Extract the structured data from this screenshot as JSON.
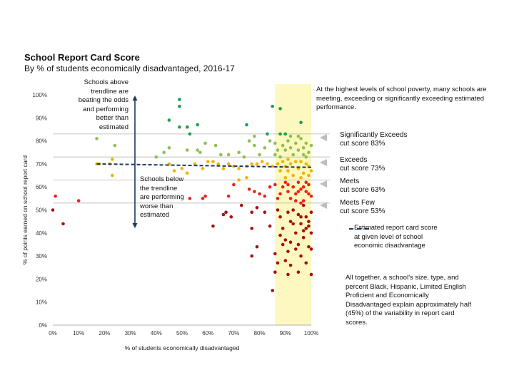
{
  "title": "School Report Card Score",
  "subtitle": "By % of students economically disadvantaged, 2016-17",
  "colors": {
    "significantly_exceeds": "#1f9e4a",
    "exceeds": "#8cc152",
    "meets": "#f0b400",
    "meets_few": "#e8231a",
    "below": "#a81010",
    "highlight": "#fcf8bf",
    "trendline": "#1a3a5c",
    "arrow": "#1a3a5c",
    "cutline": "#b5b5b5"
  },
  "annotations": {
    "above": "Schools above trendline are beating the odds and performing better than estimated",
    "below": "Schools below the trendline are performing worse than estimated",
    "poverty": "At the highest levels of school poverty, many schools are meeting, exceeding or significantly exceeding estimated performance.",
    "regression": "All together, a school's size, type, and percent Black, Hispanic, Limited English Proficient and Economically Disadvantaged explain approximately half (45%) of the variability in report card scores."
  },
  "cut_labels": [
    {
      "line1": "Significantly Exceeds",
      "line2": "cut score 83%"
    },
    {
      "line1": "Exceeds",
      "line2": "cut score 73%"
    },
    {
      "line1": "Meets",
      "line2": "cut score 63%"
    },
    {
      "line1": "Meets Few",
      "line2": "cut score 53%"
    }
  ],
  "trend_legend": "Estimated report card score at given level of school economic disadvantage",
  "chart_data": {
    "type": "scatter",
    "title": "School Report Card Score",
    "subtitle": "By % of students economically disadvantaged, 2016-17",
    "xlabel": "% of students economically disadvantaged",
    "ylabel": "% of points earned on school report card",
    "xlim": [
      0,
      100
    ],
    "ylim": [
      0,
      100
    ],
    "xticks": [
      "0%",
      "10%",
      "20%",
      "30%",
      "40%",
      "50%",
      "60%",
      "70%",
      "80%",
      "90%",
      "100%"
    ],
    "yticks": [
      "0%",
      "10%",
      "20%",
      "30%",
      "40%",
      "50%",
      "60%",
      "70%",
      "80%",
      "90%",
      "100%"
    ],
    "grid": false,
    "cut_scores": [
      83,
      73,
      63,
      53
    ],
    "highlight_x_range": [
      86,
      100
    ],
    "trendline": {
      "x": [
        17,
        100
      ],
      "y": [
        70,
        68.5
      ]
    },
    "points": [
      {
        "x": 49,
        "y": 98
      },
      {
        "x": 49,
        "y": 95
      },
      {
        "x": 45,
        "y": 89
      },
      {
        "x": 52,
        "y": 86
      },
      {
        "x": 49,
        "y": 86
      },
      {
        "x": 56,
        "y": 87
      },
      {
        "x": 53,
        "y": 83
      },
      {
        "x": 75,
        "y": 87
      },
      {
        "x": 85,
        "y": 95
      },
      {
        "x": 88,
        "y": 94
      },
      {
        "x": 96,
        "y": 88
      },
      {
        "x": 78,
        "y": 82
      },
      {
        "x": 83,
        "y": 83
      },
      {
        "x": 88,
        "y": 83
      },
      {
        "x": 90,
        "y": 83
      },
      {
        "x": 17,
        "y": 81
      },
      {
        "x": 17,
        "y": 70
      },
      {
        "x": 24,
        "y": 78
      },
      {
        "x": 23,
        "y": 72
      },
      {
        "x": 40,
        "y": 73
      },
      {
        "x": 43,
        "y": 75
      },
      {
        "x": 45,
        "y": 77
      },
      {
        "x": 52,
        "y": 76
      },
      {
        "x": 56,
        "y": 76
      },
      {
        "x": 59,
        "y": 79
      },
      {
        "x": 57,
        "y": 75
      },
      {
        "x": 63,
        "y": 78
      },
      {
        "x": 65,
        "y": 74
      },
      {
        "x": 68,
        "y": 74
      },
      {
        "x": 72,
        "y": 75
      },
      {
        "x": 74,
        "y": 73
      },
      {
        "x": 76,
        "y": 80
      },
      {
        "x": 78,
        "y": 78
      },
      {
        "x": 80,
        "y": 74
      },
      {
        "x": 82,
        "y": 77
      },
      {
        "x": 84,
        "y": 80
      },
      {
        "x": 86,
        "y": 79
      },
      {
        "x": 87,
        "y": 76
      },
      {
        "x": 89,
        "y": 78
      },
      {
        "x": 90,
        "y": 76
      },
      {
        "x": 91,
        "y": 80
      },
      {
        "x": 92,
        "y": 77
      },
      {
        "x": 93,
        "y": 74
      },
      {
        "x": 94,
        "y": 79
      },
      {
        "x": 95,
        "y": 76
      },
      {
        "x": 96,
        "y": 81
      },
      {
        "x": 97,
        "y": 77
      },
      {
        "x": 98,
        "y": 79
      },
      {
        "x": 99,
        "y": 75
      },
      {
        "x": 100,
        "y": 78
      },
      {
        "x": 92,
        "y": 82
      },
      {
        "x": 95,
        "y": 82
      },
      {
        "x": 98,
        "y": 73
      },
      {
        "x": 86,
        "y": 74
      },
      {
        "x": 88,
        "y": 73
      },
      {
        "x": 97,
        "y": 74
      },
      {
        "x": 22,
        "y": 70
      },
      {
        "x": 23,
        "y": 65
      },
      {
        "x": 18,
        "y": 70
      },
      {
        "x": 45,
        "y": 70
      },
      {
        "x": 47,
        "y": 67
      },
      {
        "x": 50,
        "y": 68
      },
      {
        "x": 52,
        "y": 66
      },
      {
        "x": 55,
        "y": 70
      },
      {
        "x": 58,
        "y": 68
      },
      {
        "x": 60,
        "y": 71
      },
      {
        "x": 62,
        "y": 71
      },
      {
        "x": 64,
        "y": 70
      },
      {
        "x": 66,
        "y": 68
      },
      {
        "x": 68,
        "y": 70
      },
      {
        "x": 70,
        "y": 69
      },
      {
        "x": 72,
        "y": 68
      },
      {
        "x": 75,
        "y": 69
      },
      {
        "x": 77,
        "y": 70
      },
      {
        "x": 79,
        "y": 70
      },
      {
        "x": 81,
        "y": 71
      },
      {
        "x": 83,
        "y": 70
      },
      {
        "x": 85,
        "y": 69
      },
      {
        "x": 87,
        "y": 70
      },
      {
        "x": 88,
        "y": 67
      },
      {
        "x": 89,
        "y": 71
      },
      {
        "x": 90,
        "y": 64
      },
      {
        "x": 91,
        "y": 67
      },
      {
        "x": 92,
        "y": 70
      },
      {
        "x": 93,
        "y": 65
      },
      {
        "x": 94,
        "y": 71
      },
      {
        "x": 95,
        "y": 68
      },
      {
        "x": 96,
        "y": 64
      },
      {
        "x": 97,
        "y": 66
      },
      {
        "x": 98,
        "y": 70
      },
      {
        "x": 99,
        "y": 65
      },
      {
        "x": 100,
        "y": 67
      },
      {
        "x": 91,
        "y": 72
      },
      {
        "x": 96,
        "y": 71
      },
      {
        "x": 99,
        "y": 69
      },
      {
        "x": 90,
        "y": 69
      },
      {
        "x": 1,
        "y": 56
      },
      {
        "x": 10,
        "y": 54
      },
      {
        "x": 58,
        "y": 55
      },
      {
        "x": 59,
        "y": 56
      },
      {
        "x": 53,
        "y": 55
      },
      {
        "x": 68,
        "y": 56
      },
      {
        "x": 70,
        "y": 61
      },
      {
        "x": 72,
        "y": 63
      },
      {
        "x": 75,
        "y": 64
      },
      {
        "x": 76,
        "y": 59
      },
      {
        "x": 78,
        "y": 58
      },
      {
        "x": 80,
        "y": 57
      },
      {
        "x": 82,
        "y": 56
      },
      {
        "x": 84,
        "y": 60
      },
      {
        "x": 86,
        "y": 61
      },
      {
        "x": 88,
        "y": 57
      },
      {
        "x": 89,
        "y": 60
      },
      {
        "x": 90,
        "y": 62
      },
      {
        "x": 91,
        "y": 58
      },
      {
        "x": 92,
        "y": 55
      },
      {
        "x": 93,
        "y": 60
      },
      {
        "x": 94,
        "y": 57
      },
      {
        "x": 95,
        "y": 62
      },
      {
        "x": 96,
        "y": 59
      },
      {
        "x": 97,
        "y": 54
      },
      {
        "x": 98,
        "y": 58
      },
      {
        "x": 99,
        "y": 61
      },
      {
        "x": 100,
        "y": 56
      },
      {
        "x": 94,
        "y": 54
      },
      {
        "x": 96,
        "y": 53
      },
      {
        "x": 98,
        "y": 62
      },
      {
        "x": 91,
        "y": 61
      },
      {
        "x": 95,
        "y": 58
      },
      {
        "x": 97,
        "y": 60
      },
      {
        "x": 99,
        "y": 57
      },
      {
        "x": 87,
        "y": 55
      },
      {
        "x": 0,
        "y": 50
      },
      {
        "x": 4,
        "y": 44
      },
      {
        "x": 62,
        "y": 43
      },
      {
        "x": 66,
        "y": 48
      },
      {
        "x": 67,
        "y": 49
      },
      {
        "x": 69,
        "y": 47
      },
      {
        "x": 73,
        "y": 52
      },
      {
        "x": 77,
        "y": 49
      },
      {
        "x": 79,
        "y": 51
      },
      {
        "x": 77,
        "y": 42
      },
      {
        "x": 77,
        "y": 30
      },
      {
        "x": 79,
        "y": 34
      },
      {
        "x": 82,
        "y": 49
      },
      {
        "x": 84,
        "y": 43
      },
      {
        "x": 85,
        "y": 15
      },
      {
        "x": 86,
        "y": 23
      },
      {
        "x": 87,
        "y": 50
      },
      {
        "x": 88,
        "y": 47
      },
      {
        "x": 89,
        "y": 42
      },
      {
        "x": 90,
        "y": 37
      },
      {
        "x": 90,
        "y": 28
      },
      {
        "x": 91,
        "y": 22
      },
      {
        "x": 91,
        "y": 49
      },
      {
        "x": 92,
        "y": 45
      },
      {
        "x": 92,
        "y": 36
      },
      {
        "x": 93,
        "y": 50
      },
      {
        "x": 94,
        "y": 40
      },
      {
        "x": 94,
        "y": 33
      },
      {
        "x": 95,
        "y": 48
      },
      {
        "x": 95,
        "y": 23
      },
      {
        "x": 96,
        "y": 44
      },
      {
        "x": 96,
        "y": 30
      },
      {
        "x": 97,
        "y": 52
      },
      {
        "x": 97,
        "y": 41
      },
      {
        "x": 98,
        "y": 47
      },
      {
        "x": 98,
        "y": 27
      },
      {
        "x": 99,
        "y": 43
      },
      {
        "x": 99,
        "y": 34
      },
      {
        "x": 100,
        "y": 49
      },
      {
        "x": 100,
        "y": 22
      },
      {
        "x": 100,
        "y": 33
      },
      {
        "x": 86,
        "y": 31
      },
      {
        "x": 88,
        "y": 39
      },
      {
        "x": 92,
        "y": 26
      },
      {
        "x": 95,
        "y": 35
      },
      {
        "x": 97,
        "y": 38
      },
      {
        "x": 99,
        "y": 45
      },
      {
        "x": 93,
        "y": 44
      },
      {
        "x": 89,
        "y": 35
      },
      {
        "x": 96,
        "y": 47
      },
      {
        "x": 98,
        "y": 42
      },
      {
        "x": 100,
        "y": 40
      },
      {
        "x": 87,
        "y": 27
      },
      {
        "x": 91,
        "y": 32
      }
    ]
  }
}
